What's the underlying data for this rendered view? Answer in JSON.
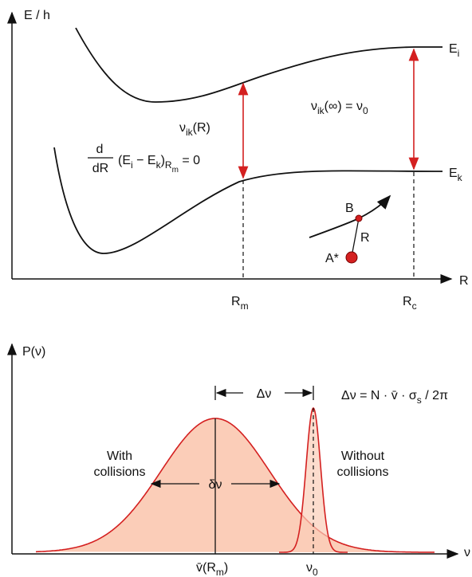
{
  "top": {
    "y_axis": "E / h",
    "x_axis": "R",
    "upper_curve": [
      {
        "text": "E"
      },
      {
        "text": "i",
        "sub": 1
      }
    ],
    "lower_curve": [
      {
        "text": "E"
      },
      {
        "text": "k",
        "sub": 1
      }
    ],
    "transition_r": [
      {
        "text": "ν"
      },
      {
        "text": "ik",
        "sub": 1
      },
      {
        "text": "(R)"
      }
    ],
    "transition_inf": [
      {
        "text": "ν"
      },
      {
        "text": "ik",
        "sub": 1
      },
      {
        "text": "(∞) = ν"
      },
      {
        "text": "0",
        "sub": 1
      }
    ],
    "condition_numerator": "d",
    "condition_denominator": "dR",
    "condition": [
      {
        "text": "(E"
      },
      {
        "text": "i",
        "sub": 1
      },
      {
        "text": " − E"
      },
      {
        "text": "k",
        "sub": 1
      },
      {
        "text": ")"
      },
      {
        "text": "R",
        "sub": 1
      },
      {
        "text": "m",
        "sub": 2
      },
      {
        "text": " = 0"
      }
    ],
    "point_b": "B",
    "distance": "R",
    "point_a": "A*",
    "r_m": [
      {
        "text": "R"
      },
      {
        "text": "m",
        "sub": 1
      }
    ],
    "r_c": [
      {
        "text": "R"
      },
      {
        "text": "c",
        "sub": 1
      }
    ]
  },
  "bottom": {
    "y_axis": "P(ν)",
    "x_axis": "ν",
    "shift": "Δν",
    "formula": [
      {
        "text": "Δν = N · v̄ · σ"
      },
      {
        "text": "s",
        "sub": 1
      },
      {
        "text": " / 2π"
      }
    ],
    "with_collisions": [
      "With",
      "collisions"
    ],
    "without_collisions": [
      "Without",
      "collisions"
    ],
    "width": "δν",
    "center_shifted": [
      {
        "text": "v̄(R"
      },
      {
        "text": "m",
        "sub": 1
      },
      {
        "text": ")"
      }
    ],
    "center_free": [
      {
        "text": "ν"
      },
      {
        "text": "0",
        "sub": 1
      }
    ]
  }
}
